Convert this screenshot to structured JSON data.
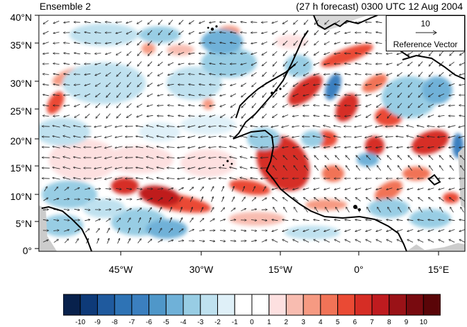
{
  "header": {
    "left_title": "Ensemble 2",
    "right_title": "(27 h forecast) 0300 UTC 12 Aug 2004"
  },
  "map": {
    "lat_ticks": [
      "40°N",
      "35°N",
      "30°N",
      "25°N",
      "20°N",
      "15°N",
      "10°N",
      "5°N",
      "0°"
    ],
    "lon_ticks": [
      "45°W",
      "30°W",
      "15°W",
      "0°",
      "15°E"
    ],
    "land_outline_color": "#000000",
    "missing_color": "#cccccc"
  },
  "reference_vector": {
    "magnitude": "10",
    "label": "Reference Vector"
  },
  "colorbar": {
    "labels": [
      "-10",
      "-9",
      "-8",
      "-7",
      "-6",
      "-5",
      "-4",
      "-3",
      "-2",
      "-1",
      "0",
      "1",
      "2",
      "3",
      "4",
      "5",
      "6",
      "7",
      "8",
      "9",
      "10"
    ],
    "colors": [
      "#08214c",
      "#0e3a78",
      "#1f5a9e",
      "#2e73b5",
      "#3b7fbf",
      "#4f97c9",
      "#6fb1d8",
      "#98cde4",
      "#bfe1ef",
      "#dff0f8",
      "#ffffff",
      "#ffffff",
      "#fde0e0",
      "#f8bcb0",
      "#f69a82",
      "#f17357",
      "#ea4a34",
      "#d62d25",
      "#bf1b1f",
      "#9a1217",
      "#780a0f",
      "#5a0508"
    ]
  }
}
